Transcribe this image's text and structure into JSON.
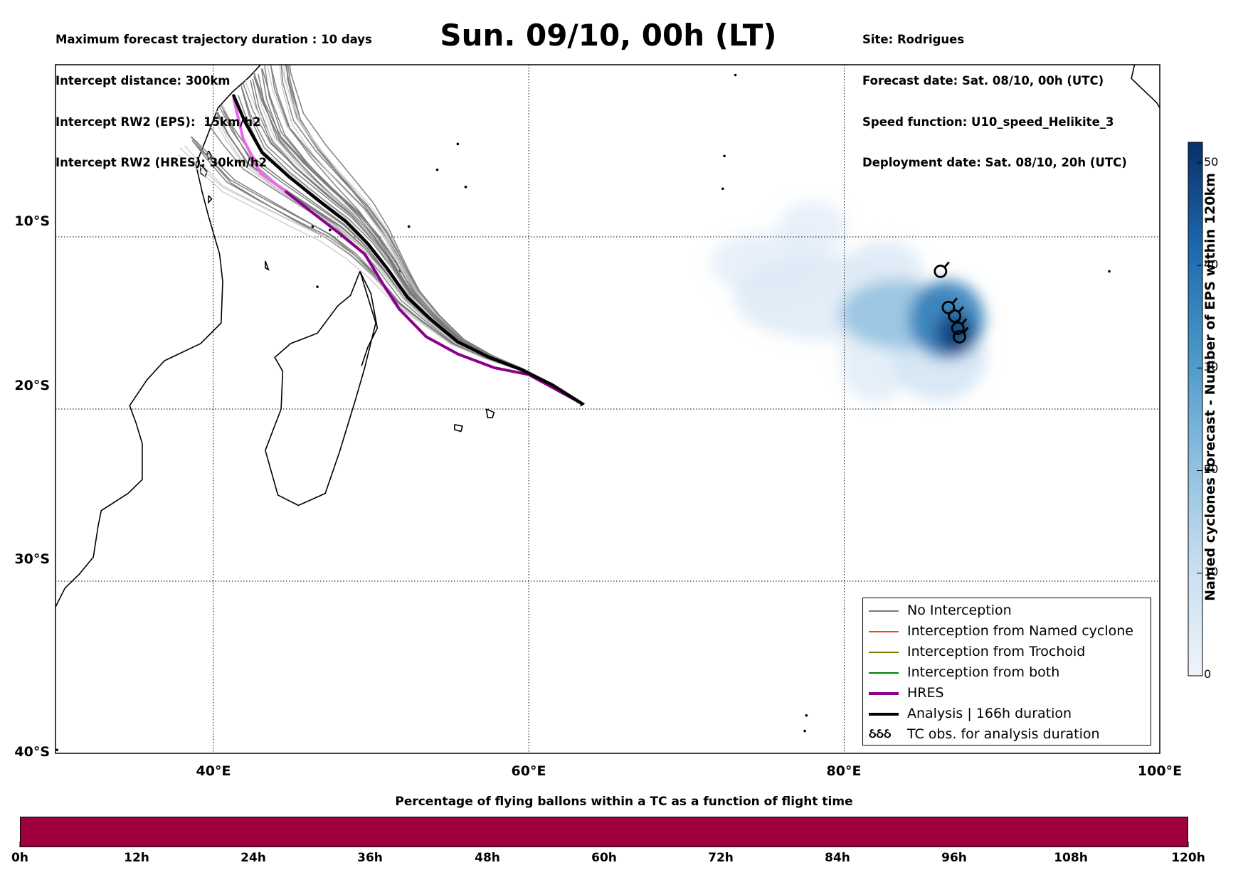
{
  "header": {
    "left_lines": [
      "Maximum forecast trajectory duration : 10 days",
      "Intercept distance: 300km",
      "Intercept RW2 (EPS):  15km/h2",
      "Intercept RW2 (HRES): 30km/h2"
    ],
    "title": "Sun. 09/10, 00h (LT)",
    "right_lines": [
      "Site: Rodrigues",
      "Forecast date: Sat. 08/10, 00h (UTC)",
      "Speed function: U10_speed_Helikite_3",
      "Deployment date: Sat. 08/10, 20h (UTC)"
    ]
  },
  "map": {
    "lon_range": [
      30,
      100
    ],
    "lat_range": [
      -40,
      0
    ],
    "x_tick_labels": [
      "40°E",
      "60°E",
      "80°E",
      "100°E"
    ],
    "y_tick_labels": [
      "10°S",
      "20°S",
      "30°S",
      "40°S"
    ],
    "grid": true,
    "colors": {
      "eps_track": "#7a7a7a",
      "eps_track_light": "#c8c8c8",
      "hres": "#8b008b",
      "hres_early": "#ee66ee",
      "analysis": "#000000",
      "land_outline": "#000000"
    },
    "release_site": {
      "lon": 63.4,
      "lat": -19.7
    },
    "hres_track": [
      [
        63.4,
        -19.7
      ],
      [
        61.8,
        -18.9
      ],
      [
        60.0,
        -18.0
      ],
      [
        57.8,
        -17.6
      ],
      [
        55.5,
        -16.8
      ],
      [
        53.5,
        -15.8
      ],
      [
        51.8,
        -14.2
      ],
      [
        50.8,
        -12.8
      ],
      [
        49.6,
        -11.0
      ],
      [
        48.0,
        -9.8
      ],
      [
        46.3,
        -8.6
      ],
      [
        44.5,
        -7.3
      ],
      [
        43.0,
        -6.3
      ],
      [
        41.9,
        -4.3
      ],
      [
        41.3,
        -2.0
      ]
    ],
    "analysis_track": [
      [
        63.4,
        -19.7
      ],
      [
        61.5,
        -18.6
      ],
      [
        59.5,
        -17.7
      ],
      [
        57.5,
        -17.0
      ],
      [
        55.5,
        -16.1
      ],
      [
        53.8,
        -14.8
      ],
      [
        52.3,
        -13.5
      ],
      [
        51.0,
        -11.8
      ],
      [
        49.8,
        -10.4
      ],
      [
        48.4,
        -9.1
      ],
      [
        46.7,
        -7.9
      ],
      [
        44.8,
        -6.5
      ],
      [
        43.1,
        -5.1
      ],
      [
        42.0,
        -3.3
      ],
      [
        41.3,
        -1.8
      ]
    ],
    "cyclone_obs": [
      [
        86.1,
        -12.0
      ],
      [
        86.6,
        -14.1
      ],
      [
        87.0,
        -14.6
      ],
      [
        87.2,
        -15.3
      ],
      [
        87.3,
        -15.8
      ]
    ],
    "density_blobs": [
      {
        "lon": 75.0,
        "lat": -11.5,
        "rx": 3.5,
        "ry": 1.8,
        "level": 3
      },
      {
        "lon": 78.0,
        "lat": -9.5,
        "rx": 2.2,
        "ry": 1.6,
        "level": 3
      },
      {
        "lon": 79.0,
        "lat": -13.5,
        "rx": 6.0,
        "ry": 2.5,
        "level": 5
      },
      {
        "lon": 82.0,
        "lat": -17.0,
        "rx": 2.3,
        "ry": 2.6,
        "level": 4
      },
      {
        "lon": 82.5,
        "lat": -12.0,
        "rx": 2.5,
        "ry": 1.8,
        "level": 5
      },
      {
        "lon": 86.0,
        "lat": -17.0,
        "rx": 3.0,
        "ry": 2.5,
        "level": 8
      },
      {
        "lon": 83.5,
        "lat": -14.5,
        "rx": 3.8,
        "ry": 2.0,
        "level": 20
      },
      {
        "lon": 86.5,
        "lat": -14.8,
        "rx": 2.4,
        "ry": 2.3,
        "level": 38
      },
      {
        "lon": 87.0,
        "lat": -15.6,
        "rx": 1.2,
        "ry": 1.2,
        "level": 50
      }
    ]
  },
  "legend": {
    "items": [
      {
        "label": "No Interception",
        "color": "#7a7a7a",
        "width": 1.5,
        "type": "line"
      },
      {
        "label": "Interception from Named cyclone",
        "color": "#ff4500",
        "width": 1.5,
        "type": "line"
      },
      {
        "label": "Interception from Trochoid",
        "color": "#808000",
        "width": 1.5,
        "type": "line"
      },
      {
        "label": "Interception from both",
        "color": "#008000",
        "width": 1.5,
        "type": "line"
      },
      {
        "label": "HRES",
        "color": "#8b008b",
        "width": 4,
        "type": "line"
      },
      {
        "label": "Analysis | 166h duration",
        "color": "#000000",
        "width": 4,
        "type": "line"
      },
      {
        "label": "TC obs. for analysis duration",
        "color": "#000000",
        "width": 0,
        "type": "symbol",
        "symbol": "ઠઠઠ"
      }
    ]
  },
  "colorbar": {
    "title": "Named cyclones forecast - Number of EPS within 120km",
    "range": [
      0,
      52
    ],
    "ticks": [
      "0",
      "10",
      "20",
      "30",
      "40",
      "50"
    ],
    "colors": {
      "low": "#deebf7",
      "high": "#08306b"
    }
  },
  "time_bar": {
    "title": "Percentage of flying ballons within a TC as a function of flight time",
    "labels": [
      "0h",
      "12h",
      "24h",
      "36h",
      "48h",
      "60h",
      "72h",
      "84h",
      "96h",
      "108h",
      "120h"
    ],
    "fill_color": "#a0003d",
    "fill_fraction": 1.0
  }
}
